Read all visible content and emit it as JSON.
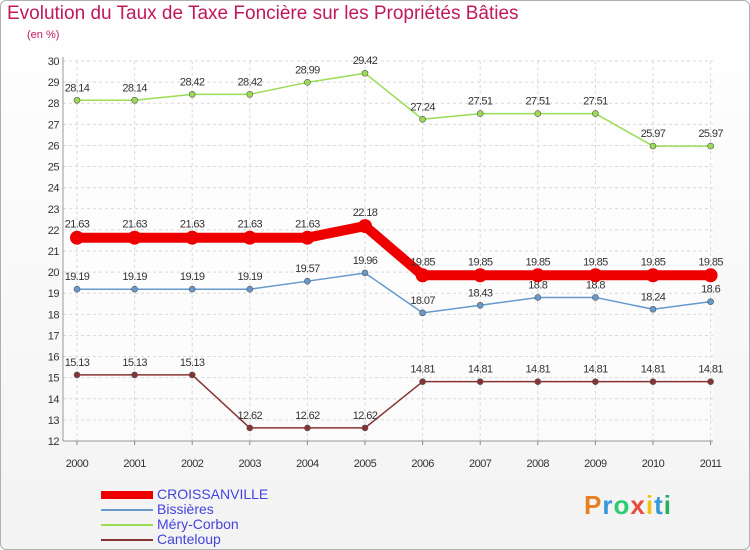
{
  "chart_data": {
    "type": "line",
    "title": "Evolution du Taux de Taxe Foncière sur les Propriétés Bâties",
    "subtitle": "(en %)",
    "x": [
      "2000",
      "2001",
      "2002",
      "2003",
      "2004",
      "2005",
      "2006",
      "2007",
      "2008",
      "2009",
      "2010",
      "2011"
    ],
    "ylim": [
      12,
      30
    ],
    "yticks": [
      "12",
      "13",
      "14",
      "15",
      "16",
      "17",
      "18",
      "19",
      "20",
      "21",
      "22",
      "23",
      "24",
      "25",
      "26",
      "27",
      "28",
      "29",
      "30"
    ],
    "series": [
      {
        "name": "Méry-Corbon",
        "color": "#99dd55",
        "values": [
          28.14,
          28.14,
          28.42,
          28.42,
          28.99,
          29.42,
          27.24,
          27.51,
          27.51,
          27.51,
          25.97,
          25.97
        ],
        "labels": [
          "28.14",
          "28.14",
          "28.42",
          "28.42",
          "28.99",
          "29.42",
          "27.24",
          "27.51",
          "27.51",
          "27.51",
          "25.97",
          "25.97"
        ]
      },
      {
        "name": "Bissières",
        "color": "#6699cc",
        "values": [
          19.19,
          19.19,
          19.19,
          19.19,
          19.57,
          19.96,
          18.07,
          18.43,
          18.8,
          18.8,
          18.24,
          18.6
        ],
        "labels": [
          "19.19",
          "19.19",
          "19.19",
          "19.19",
          "19.57",
          "19.96",
          "18.07",
          "18.43",
          "18.8",
          "18.8",
          "18.24",
          "18.6"
        ]
      },
      {
        "name": "Canteloup",
        "color": "#883333",
        "values": [
          15.13,
          15.13,
          15.13,
          12.62,
          12.62,
          12.62,
          14.81,
          14.81,
          14.81,
          14.81,
          14.81,
          14.81
        ],
        "labels": [
          "15.13",
          "15.13",
          "15.13",
          "12.62",
          "12.62",
          "12.62",
          "14.81",
          "14.81",
          "14.81",
          "14.81",
          "14.81",
          "14.81"
        ]
      },
      {
        "name": "CROISSANVILLE",
        "color": "#ee0000",
        "bold": true,
        "values": [
          21.63,
          21.63,
          21.63,
          21.63,
          21.63,
          22.18,
          19.85,
          19.85,
          19.85,
          19.85,
          19.85,
          19.85
        ],
        "labels": [
          "21.63",
          "21.63",
          "21.63",
          "21.63",
          "21.63",
          "22.18",
          "19.85",
          "19.85",
          "19.85",
          "19.85",
          "19.85",
          "19.85"
        ]
      }
    ],
    "legend": [
      {
        "name": "CROISSANVILLE",
        "color": "#ee0000",
        "bold": true
      },
      {
        "name": "Bissières",
        "color": "#6699cc"
      },
      {
        "name": "Méry-Corbon",
        "color": "#99dd55"
      },
      {
        "name": "Canteloup",
        "color": "#883333"
      }
    ],
    "grid": true
  },
  "logo": {
    "letters": [
      "P",
      "r",
      "o",
      "x",
      "i",
      "t",
      "i"
    ],
    "colors": [
      "#e67e22",
      "#3498db",
      "#2ecc71",
      "#e74c3c",
      "#f1c40f",
      "#3498db",
      "#27ae60"
    ]
  }
}
